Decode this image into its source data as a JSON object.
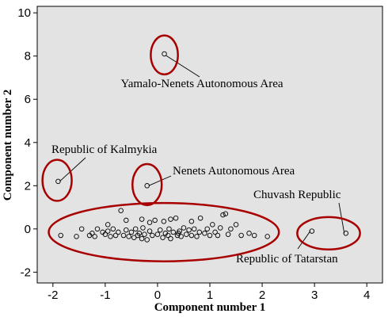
{
  "chart_data": {
    "type": "scatter",
    "xlabel": "Component number 1",
    "ylabel": "Component number 2",
    "xlim": [
      -2.3,
      4.3
    ],
    "ylim": [
      -2.5,
      10.3
    ],
    "xticks": [
      -2,
      -1,
      0,
      1,
      2,
      3,
      4
    ],
    "yticks": [
      -2,
      0,
      2,
      4,
      6,
      8,
      10
    ],
    "grid": false,
    "colors": {
      "background": "#e3e3e3",
      "points": "#000000",
      "highlight": "#a80000"
    },
    "annotations": [
      {
        "label": "Yamalo-Nenets Autonomous Area",
        "x": 0.13,
        "y": 8.1
      },
      {
        "label": "Republic of Kalmykia",
        "x": -1.9,
        "y": 2.2
      },
      {
        "label": "Nenets Autonomous Area",
        "x": -0.2,
        "y": 2.0
      },
      {
        "label": "Chuvash Republic",
        "x": 3.6,
        "y": -0.2
      },
      {
        "label": "Republic of Tatarstan",
        "x": 2.95,
        "y": -0.1
      }
    ],
    "highlight_ellipses": [
      {
        "cx": 0.13,
        "cy": 8.05,
        "rx": 0.26,
        "ry": 0.9
      },
      {
        "cx": -1.92,
        "cy": 2.25,
        "rx": 0.28,
        "ry": 0.95
      },
      {
        "cx": -0.2,
        "cy": 2.05,
        "rx": 0.28,
        "ry": 0.95
      },
      {
        "cx": 0.12,
        "cy": -0.15,
        "rx": 2.2,
        "ry": 1.35
      },
      {
        "cx": 3.27,
        "cy": -0.2,
        "rx": 0.6,
        "ry": 0.75
      }
    ],
    "points": [
      [
        0.13,
        8.1
      ],
      [
        -1.9,
        2.2
      ],
      [
        -0.2,
        2.0
      ],
      [
        2.95,
        -0.1
      ],
      [
        3.6,
        -0.2
      ],
      [
        -1.85,
        -0.3
      ],
      [
        -1.55,
        -0.35
      ],
      [
        -1.45,
        0.0
      ],
      [
        -1.3,
        -0.3
      ],
      [
        -1.25,
        -0.2
      ],
      [
        -1.2,
        -0.35
      ],
      [
        -1.15,
        0.0
      ],
      [
        -1.0,
        -0.25
      ],
      [
        -0.95,
        -0.1
      ],
      [
        -0.9,
        -0.35
      ],
      [
        -0.85,
        0.0
      ],
      [
        -0.8,
        -0.3
      ],
      [
        -0.75,
        -0.15
      ],
      [
        -0.7,
        0.85
      ],
      [
        -0.65,
        -0.3
      ],
      [
        -0.6,
        -0.05
      ],
      [
        -0.55,
        -0.35
      ],
      [
        -0.5,
        -0.15
      ],
      [
        -0.45,
        -0.4
      ],
      [
        -0.42,
        0.0
      ],
      [
        -0.38,
        -0.3
      ],
      [
        -0.35,
        -0.2
      ],
      [
        -0.3,
        -0.45
      ],
      [
        -0.28,
        0.05
      ],
      [
        -0.25,
        -0.25
      ],
      [
        -0.2,
        -0.5
      ],
      [
        -0.15,
        -0.1
      ],
      [
        -0.1,
        -0.3
      ],
      [
        -0.05,
        0.4
      ],
      [
        0.0,
        -0.25
      ],
      [
        0.05,
        -0.05
      ],
      [
        0.1,
        -0.4
      ],
      [
        0.12,
        0.35
      ],
      [
        0.15,
        -0.2
      ],
      [
        0.2,
        -0.3
      ],
      [
        0.22,
        0.0
      ],
      [
        0.25,
        -0.45
      ],
      [
        0.3,
        -0.15
      ],
      [
        0.35,
        0.5
      ],
      [
        0.38,
        -0.3
      ],
      [
        0.42,
        -0.1
      ],
      [
        0.45,
        -0.35
      ],
      [
        0.5,
        0.05
      ],
      [
        0.55,
        -0.25
      ],
      [
        0.6,
        -0.05
      ],
      [
        0.65,
        -0.3
      ],
      [
        0.7,
        0.0
      ],
      [
        0.75,
        -0.35
      ],
      [
        0.8,
        -0.15
      ],
      [
        0.82,
        0.5
      ],
      [
        0.9,
        -0.2
      ],
      [
        0.95,
        0.0
      ],
      [
        1.0,
        -0.3
      ],
      [
        1.05,
        0.2
      ],
      [
        1.1,
        -0.15
      ],
      [
        1.15,
        -0.3
      ],
      [
        1.2,
        0.05
      ],
      [
        1.25,
        0.65
      ],
      [
        1.3,
        0.7
      ],
      [
        1.35,
        -0.25
      ],
      [
        1.4,
        0.0
      ],
      [
        1.5,
        0.2
      ],
      [
        1.6,
        -0.3
      ],
      [
        1.75,
        -0.2
      ],
      [
        1.85,
        -0.3
      ],
      [
        2.1,
        -0.35
      ],
      [
        -0.3,
        0.45
      ],
      [
        -0.6,
        0.4
      ],
      [
        -1.05,
        -0.15
      ],
      [
        -0.95,
        0.2
      ],
      [
        0.25,
        0.45
      ],
      [
        0.65,
        0.35
      ],
      [
        0.4,
        -0.2
      ],
      [
        -0.15,
        0.3
      ]
    ]
  }
}
